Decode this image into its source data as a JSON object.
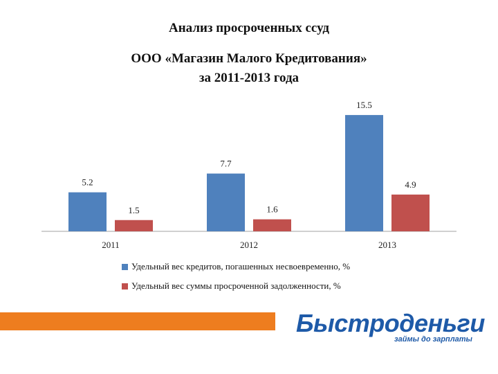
{
  "title": {
    "line1": "Анализ просроченных ссуд",
    "line2": "ООО «Магазин Малого Кредитования»",
    "line3": "за 2011-2013 года"
  },
  "colors": {
    "series1": "#4f81bd",
    "series2": "#c0504d",
    "axis": "#a0a0a0",
    "band": "#ee7d1f",
    "logo": "#1e5aa8"
  },
  "chart_data": {
    "type": "bar",
    "categories": [
      "2011",
      "2012",
      "2013"
    ],
    "series": [
      {
        "name": "Удельный вес кредитов, погашенных несвоевременно, %",
        "values": [
          5.2,
          7.7,
          15.5
        ]
      },
      {
        "name": "Удельный вес суммы просроченной задолженности, %",
        "values": [
          1.5,
          1.6,
          4.9
        ]
      }
    ],
    "ylim": [
      0,
      16.8
    ],
    "grid": false,
    "legend_position": "bottom-left"
  },
  "logo": {
    "name": "Быстроденьги",
    "tagline": "займы до зарплаты"
  }
}
